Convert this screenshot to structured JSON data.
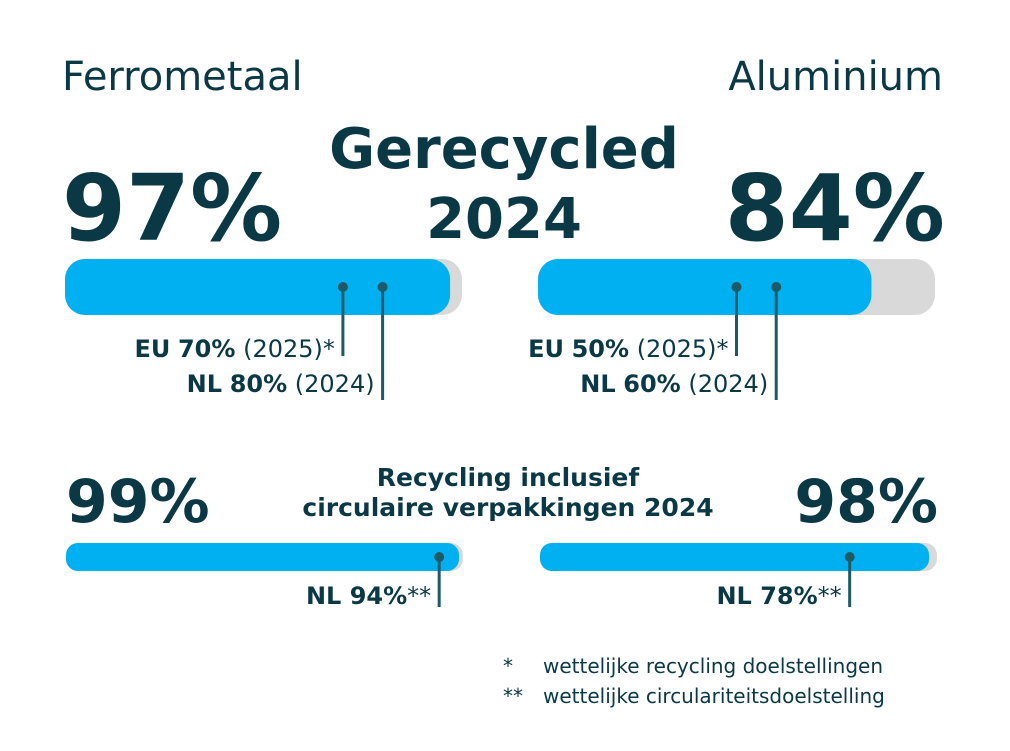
{
  "panels": [
    {
      "title": "Ferrometaal",
      "recycled": 97,
      "recycled_label": "97%",
      "circular": 99,
      "circular_label": "99%",
      "targets": [
        {
          "region": "EU",
          "value": 70,
          "value_label": "70%",
          "year": "(2025)*"
        },
        {
          "region": "NL",
          "value": 80,
          "value_label": "80%",
          "year": "(2024)"
        }
      ],
      "circular_target": {
        "region": "NL",
        "value": 94,
        "value_label": "94%",
        "note": "**"
      }
    },
    {
      "title": "Aluminium",
      "recycled": 84,
      "recycled_label": "84%",
      "circular": 98,
      "circular_label": "98%",
      "targets": [
        {
          "region": "EU",
          "value": 50,
          "value_label": "50%",
          "year": "(2025)*"
        },
        {
          "region": "NL",
          "value": 60,
          "value_label": "60%",
          "year": "(2024)"
        }
      ],
      "circular_target": {
        "region": "NL",
        "value": 78,
        "value_label": "78%",
        "note": "**"
      }
    }
  ],
  "recycled_heading": "Gerecycled",
  "recycled_year": "2024",
  "circular_heading": [
    "Recycling inclusief",
    "circulaire verpakkingen 2024"
  ],
  "footnotes": [
    {
      "mark": "*",
      "text": "wettelijke recycling doelstellingen"
    },
    {
      "mark": "**",
      "text": "wettelijke circulariteitsdoelstelling"
    }
  ]
}
